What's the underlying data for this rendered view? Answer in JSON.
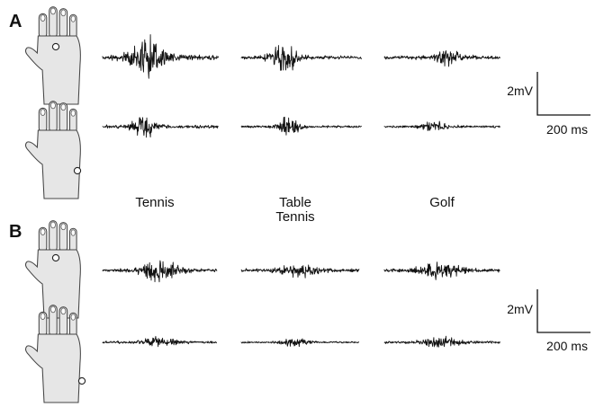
{
  "panels": [
    {
      "letter": "A"
    },
    {
      "letter": "B"
    }
  ],
  "sports": {
    "tennis": "Tennis",
    "table_tennis_line1": "Table",
    "table_tennis_line2": "Tennis",
    "golf": "Golf"
  },
  "scale_bar": {
    "amplitude_label": "2mV",
    "time_label": "200 ms"
  },
  "colors": {
    "hand_fill": "#e6e6e6",
    "trace": "#111111"
  }
}
